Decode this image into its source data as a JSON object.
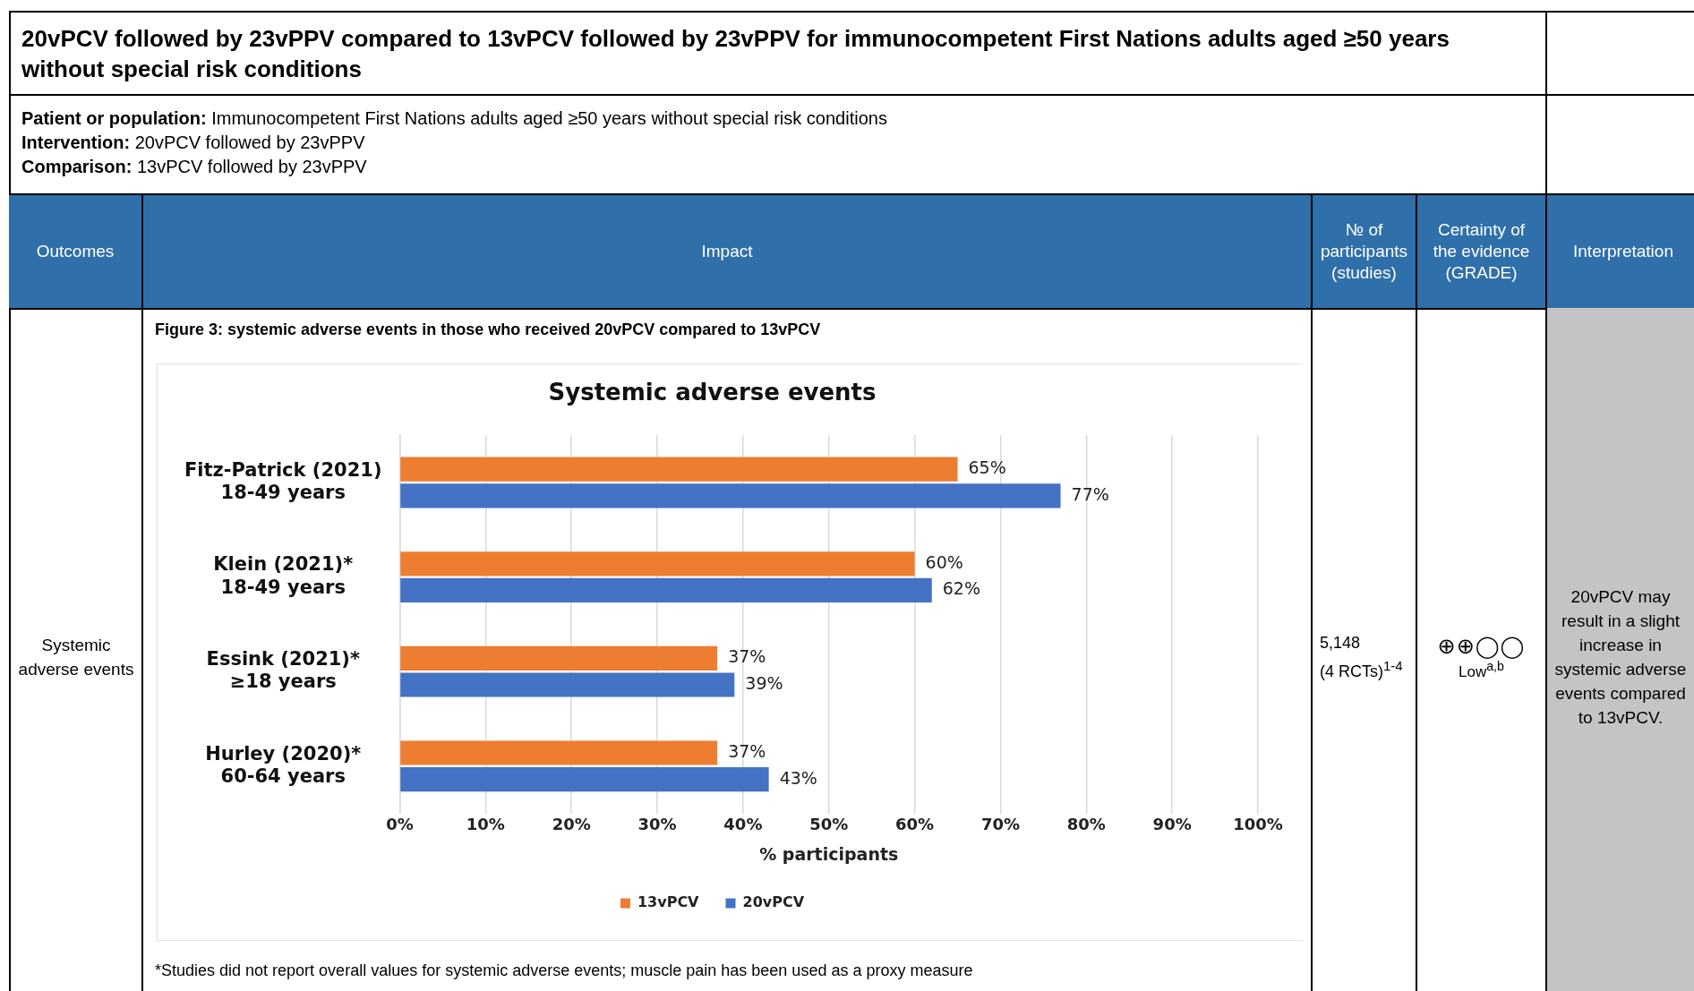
{
  "chart_data": {
    "type": "bar",
    "orientation": "horizontal",
    "title": "Systemic adverse events",
    "xlabel": "% participants",
    "categories": [
      "Fitz-Patrick (2021)\n18-49 years",
      "Klein (2021)*\n18-49 years",
      "Essink (2021)*\n≥18 years",
      "Hurley (2020)*\n60-64 years"
    ],
    "series": [
      {
        "name": "13vPCV",
        "color": "#ed7d31",
        "values": [
          65,
          60,
          37,
          37
        ],
        "value_labels": [
          "65%",
          "60%",
          "37%",
          "37%"
        ]
      },
      {
        "name": "20vPCV",
        "color": "#4472c4",
        "values": [
          77,
          62,
          39,
          43
        ],
        "value_labels": [
          "77%",
          "62%",
          "39%",
          "43%"
        ]
      }
    ],
    "xlim": [
      0,
      100
    ],
    "xticks": [
      {
        "value": 0,
        "label": "0%"
      },
      {
        "value": 10,
        "label": "10%"
      },
      {
        "value": 20,
        "label": "20%"
      },
      {
        "value": 30,
        "label": "30%"
      },
      {
        "value": 40,
        "label": "40%"
      },
      {
        "value": 50,
        "label": "50%"
      },
      {
        "value": 60,
        "label": "60%"
      },
      {
        "value": 70,
        "label": "70%"
      },
      {
        "value": 80,
        "label": "80%"
      },
      {
        "value": 90,
        "label": "90%"
      },
      {
        "value": 100,
        "label": "100%"
      }
    ],
    "grid": "x",
    "legend": "bottom",
    "annotations": [
      "20vPCV followed by 23vPPV compared to 13vPCV followed by 23vPPV for immunocompetent First Nations adults aged ≥50 years without special risk conditions",
      "Patient or population:",
      "Immunocompetent First Nations adults aged ≥50 years without special risk conditions",
      "Intervention:",
      "20vPCV followed by 23vPPV",
      "Comparison:",
      "13vPCV followed by 23vPPV",
      "Outcomes",
      "Impact",
      "№ of participants (studies)",
      "Certainty of the evidence (GRADE)",
      "Interpretation",
      "Systemic adverse events",
      "Figure 3: systemic adverse events in those who received 20vPCV compared to 13vPCV",
      "5,148",
      "(4 RCTs)$^{1-4}$",
      "⊕⊕◯◯",
      "Low$^{a,b}$",
      "20vPCV may result in a slight increase in systemic adverse events compared to 13vPCV.",
      "*Studies did not report overall values for systemic adverse events; muscle pain has been used as a proxy measure"
    ]
  }
}
